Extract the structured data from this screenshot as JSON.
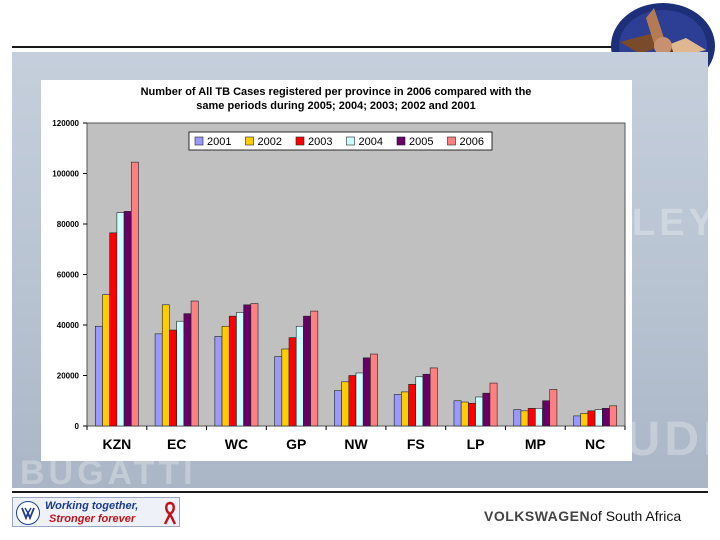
{
  "slide": {
    "footer_brand": "VOLKSWAGEN",
    "footer_suffix": "of South Africa",
    "tagline_1": "Working together,",
    "tagline_2": "Stronger forever",
    "watermark_1": "BUGATTI",
    "watermark_2": "LEY",
    "watermark_3": "AUDI"
  },
  "chart_data": {
    "type": "bar",
    "title": "Number of All TB Cases registered per province in 2006 compared with the same periods during 2005; 2004; 2003; 2002 and 2001",
    "title_lines": [
      "Number of All TB Cases registered per province in 2006 compared with the",
      "same periods during 2005; 2004; 2003; 2002 and 2001"
    ],
    "xlabel": "",
    "ylabel": "",
    "ylim": [
      0,
      120000
    ],
    "yticks": [
      0,
      20000,
      40000,
      60000,
      80000,
      100000,
      120000
    ],
    "ytick_labels": [
      "0",
      "20000",
      "40000",
      "60000",
      "80000",
      "100000",
      "120000"
    ],
    "grid": false,
    "legend_position": "top",
    "plot_background": "#c0c0c0",
    "categories": [
      "KZN",
      "EC",
      "WC",
      "GP",
      "NW",
      "FS",
      "LP",
      "MP",
      "NC"
    ],
    "series": [
      {
        "name": "2001",
        "color": "#9999ff",
        "values": [
          39500,
          36500,
          35500,
          27500,
          14000,
          12500,
          10000,
          6500,
          4000
        ]
      },
      {
        "name": "2002",
        "color": "#ffcc00",
        "values": [
          52000,
          48000,
          39500,
          30500,
          17500,
          13500,
          9500,
          6000,
          5000
        ]
      },
      {
        "name": "2003",
        "color": "#ff0000",
        "values": [
          76500,
          38000,
          43500,
          35000,
          20000,
          16500,
          9000,
          7000,
          6000
        ]
      },
      {
        "name": "2004",
        "color": "#ccffff",
        "values": [
          84500,
          41500,
          45000,
          39500,
          21000,
          19500,
          11500,
          7000,
          6500
        ]
      },
      {
        "name": "2005",
        "color": "#660066",
        "values": [
          85000,
          44500,
          48000,
          43500,
          27000,
          20500,
          13000,
          10000,
          7000
        ]
      },
      {
        "name": "2006",
        "color": "#ff8080",
        "values": [
          104500,
          49500,
          48500,
          45500,
          28500,
          23000,
          17000,
          14500,
          8000
        ]
      }
    ]
  }
}
